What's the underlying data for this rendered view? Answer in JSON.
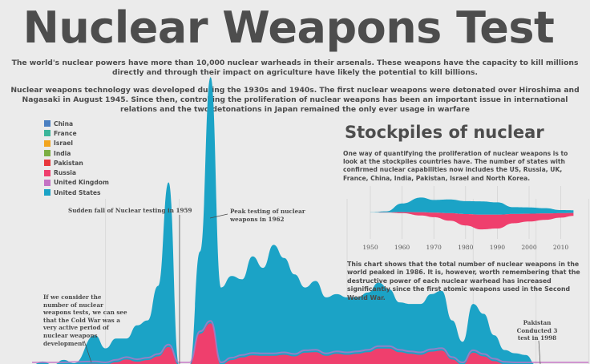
{
  "title": "Nuclear Weapons Test",
  "intro": [
    "The world's nuclear powers have more than 10,000 nuclear warheads in their arsenals. These weapons have the capacity to kill millions directly and through their impact on agriculture have likely the potential to kill billions.",
    "Nuclear weapons technology was developed during the 1930s and 1940s. The first nuclear weapons were detonated over Hiroshima and Nagasaki in August 1945. Since then, controlling the proliferation of nuclear weapons has been an important issue in international relations and the two detonations in Japan remained the only ever usage in warfare"
  ],
  "legend": [
    {
      "label": "China",
      "color": "#4a7fc1"
    },
    {
      "label": "France",
      "color": "#3bb59a"
    },
    {
      "label": "Israel",
      "color": "#f2a51f"
    },
    {
      "label": "India",
      "color": "#7cae43"
    },
    {
      "label": "Pakistan",
      "color": "#e8383d"
    },
    {
      "label": "Russia",
      "color": "#ef3f6d"
    },
    {
      "label": "United Kingdom",
      "color": "#c472c4"
    },
    {
      "label": "United States",
      "color": "#1ba3c6"
    }
  ],
  "annotations": {
    "sudden_fall": "Sudden fall of Nuclear testing in 1959",
    "peak": "Peak testing of nuclear weapons in 1962",
    "cold_war": "If we consider the number of nuclear weapons tests, we can see that the Cold War was a very active period of nuclear weapons development.",
    "pakistan": "Pakistan Conducted 3 test in 1998"
  },
  "stockpile": {
    "title": "Stockpiles of nuclear",
    "description": "One way of quantifying the proliferation of nuclear weapons is to look at the stockpiles countries have. The number of states with confirmed nuclear capabilities now includes the US, Russia, UK, France, China, India, Pakistan, Israel and North Korea.",
    "note": "This chart shows that the total number of nuclear weapons in the world peaked in 1986. It is, however, worth remembering that the destructive power of each nuclear warhead has increased significantly since the first atomic weapons used in the Second World War."
  },
  "chart_data": [
    {
      "type": "area",
      "title": "Nuclear Weapons Test",
      "series_colors": {
        "us": "#1ba3c6",
        "russia": "#ef3f6d",
        "russia_top": "#c472c4"
      },
      "stream": [
        {
          "x": 1945,
          "us": 0,
          "russia": 0
        },
        {
          "x": 1946,
          "us": 2,
          "russia": 0
        },
        {
          "x": 1947,
          "us": 0,
          "russia": 0
        },
        {
          "x": 1948,
          "us": 3,
          "russia": 0
        },
        {
          "x": 1949,
          "us": 0,
          "russia": 1
        },
        {
          "x": 1951,
          "us": 16,
          "russia": 2
        },
        {
          "x": 1952,
          "us": 10,
          "russia": 0
        },
        {
          "x": 1953,
          "us": 11,
          "russia": 5
        },
        {
          "x": 1954,
          "us": 6,
          "russia": 10
        },
        {
          "x": 1955,
          "us": 18,
          "russia": 6
        },
        {
          "x": 1956,
          "us": 18,
          "russia": 9
        },
        {
          "x": 1957,
          "us": 32,
          "russia": 16
        },
        {
          "x": 1958,
          "us": 77,
          "russia": 34
        },
        {
          "x": 1959,
          "us": 0,
          "russia": 0
        },
        {
          "x": 1960,
          "us": 0,
          "russia": 0
        },
        {
          "x": 1961,
          "us": 10,
          "russia": 59
        },
        {
          "x": 1962,
          "us": 96,
          "russia": 79
        },
        {
          "x": 1963,
          "us": 47,
          "russia": 0
        },
        {
          "x": 1964,
          "us": 45,
          "russia": 9
        },
        {
          "x": 1965,
          "us": 38,
          "russia": 14
        },
        {
          "x": 1966,
          "us": 48,
          "russia": 18
        },
        {
          "x": 1967,
          "us": 42,
          "russia": 17
        },
        {
          "x": 1968,
          "us": 56,
          "russia": 17
        },
        {
          "x": 1969,
          "us": 46,
          "russia": 19
        },
        {
          "x": 1970,
          "us": 39,
          "russia": 16
        },
        {
          "x": 1971,
          "us": 24,
          "russia": 23
        },
        {
          "x": 1972,
          "us": 27,
          "russia": 24
        },
        {
          "x": 1973,
          "us": 24,
          "russia": 17
        },
        {
          "x": 1974,
          "us": 22,
          "russia": 21
        },
        {
          "x": 1975,
          "us": 22,
          "russia": 19
        },
        {
          "x": 1976,
          "us": 20,
          "russia": 21
        },
        {
          "x": 1977,
          "us": 20,
          "russia": 24
        },
        {
          "x": 1978,
          "us": 19,
          "russia": 31
        },
        {
          "x": 1979,
          "us": 15,
          "russia": 31
        },
        {
          "x": 1980,
          "us": 14,
          "russia": 24
        },
        {
          "x": 1981,
          "us": 16,
          "russia": 21
        },
        {
          "x": 1982,
          "us": 18,
          "russia": 19
        },
        {
          "x": 1983,
          "us": 18,
          "russia": 25
        },
        {
          "x": 1984,
          "us": 18,
          "russia": 27
        },
        {
          "x": 1985,
          "us": 17,
          "russia": 10
        },
        {
          "x": 1986,
          "us": 14,
          "russia": 0
        },
        {
          "x": 1987,
          "us": 14,
          "russia": 23
        },
        {
          "x": 1988,
          "us": 15,
          "russia": 16
        },
        {
          "x": 1989,
          "us": 11,
          "russia": 7
        },
        {
          "x": 1990,
          "us": 8,
          "russia": 1
        },
        {
          "x": 1991,
          "us": 7,
          "russia": 0
        },
        {
          "x": 1992,
          "us": 6,
          "russia": 0
        },
        {
          "x": 1993,
          "us": 0,
          "russia": 0
        },
        {
          "x": 1996,
          "us": 0,
          "russia": 0
        },
        {
          "x": 1998,
          "us": 0,
          "russia": 0,
          "pakistan": 3
        }
      ]
    },
    {
      "type": "area",
      "title": "Stockpiles of nuclear",
      "x_ticks": [
        1950,
        1960,
        1970,
        1980,
        1990,
        2000,
        2010
      ],
      "xlim": [
        1950,
        2014
      ],
      "series": [
        {
          "name": "United States",
          "color": "#1ba3c6",
          "x": [
            1950,
            1955,
            1960,
            1966,
            1970,
            1975,
            1980,
            1985,
            1990,
            1995,
            2000,
            2005,
            2010,
            2014
          ],
          "values": [
            300,
            2400,
            18600,
            31000,
            26000,
            27000,
            23500,
            23000,
            21000,
            11000,
            10500,
            9000,
            5000,
            4700
          ]
        },
        {
          "name": "Russia",
          "color": "#ef3f6d",
          "x": [
            1950,
            1955,
            1960,
            1966,
            1970,
            1975,
            1980,
            1985,
            1990,
            1995,
            2000,
            2005,
            2010,
            2014
          ],
          "values": [
            5,
            200,
            1600,
            7000,
            11000,
            19000,
            30000,
            39000,
            37000,
            25000,
            21000,
            17000,
            12000,
            8000
          ]
        }
      ]
    }
  ]
}
